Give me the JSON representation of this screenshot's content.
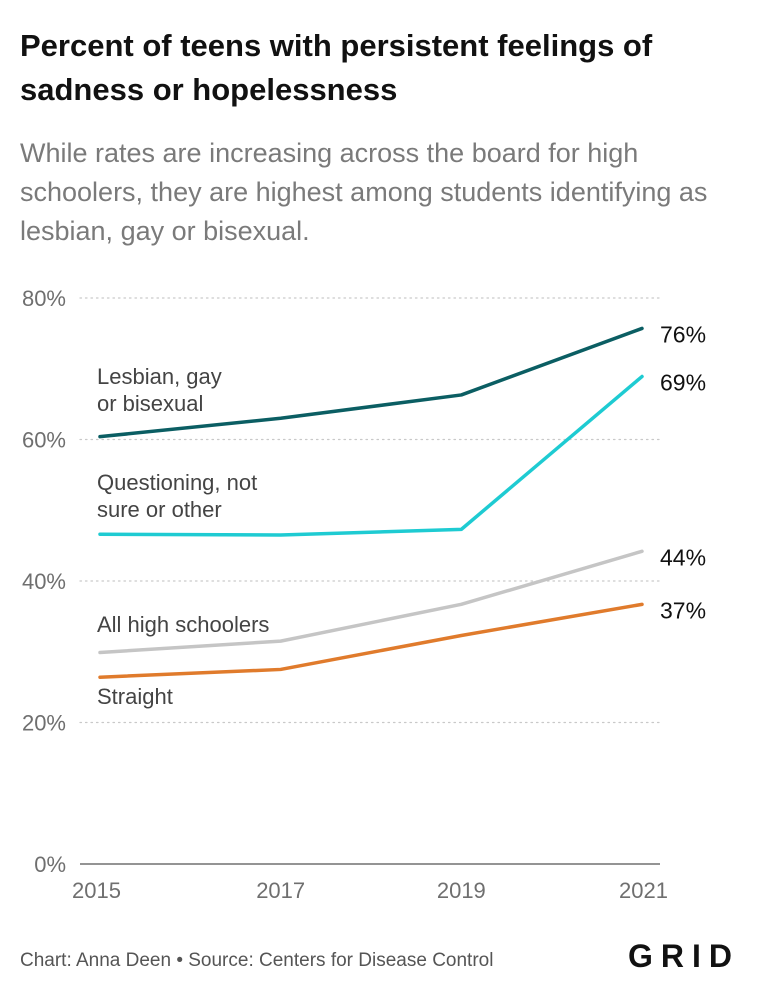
{
  "title": "Percent of teens with persistent feelings of sadness or hopelessness",
  "subtitle": "While rates are increasing across the board for high schoolers, they are highest among students identifying as lesbian, gay or bisexual.",
  "footer": "Chart: Anna Deen • Source: Centers for Disease Control",
  "logo": "GRID",
  "colors": {
    "lgb": "#0b5e63",
    "questioning": "#1ecbd2",
    "all": "#c5c5c5",
    "straight": "#e07b2c",
    "grid": "#c9c9c9",
    "tick_text": "#6f6f6f",
    "label_text": "#444444",
    "end_label_text": "#111111"
  },
  "chart_data": {
    "type": "line",
    "x": [
      "2015",
      "2017",
      "2019",
      "2021"
    ],
    "ylim": [
      0,
      80
    ],
    "yticks": [
      {
        "value": 0,
        "label": "0%"
      },
      {
        "value": 20,
        "label": "20%"
      },
      {
        "value": 40,
        "label": "40%"
      },
      {
        "value": 60,
        "label": "60%"
      },
      {
        "value": 80,
        "label": "80%"
      }
    ],
    "grid": true,
    "series": [
      {
        "key": "lgb",
        "label_lines": [
          "Lesbian, gay",
          "or bisexual"
        ],
        "values": [
          60.4,
          63,
          66.3,
          75.7
        ],
        "end_label": "76%"
      },
      {
        "key": "questioning",
        "label_lines": [
          "Questioning, not",
          "sure or other"
        ],
        "values": [
          46.6,
          46.5,
          47.3,
          68.9
        ],
        "end_label": "69%"
      },
      {
        "key": "all",
        "label_lines": [
          "All high schoolers"
        ],
        "values": [
          29.9,
          31.5,
          36.7,
          44.2
        ],
        "end_label": "44%"
      },
      {
        "key": "straight",
        "label_lines": [
          "Straight"
        ],
        "values": [
          26.4,
          27.5,
          32.3,
          36.7
        ],
        "end_label": "37%"
      }
    ]
  }
}
